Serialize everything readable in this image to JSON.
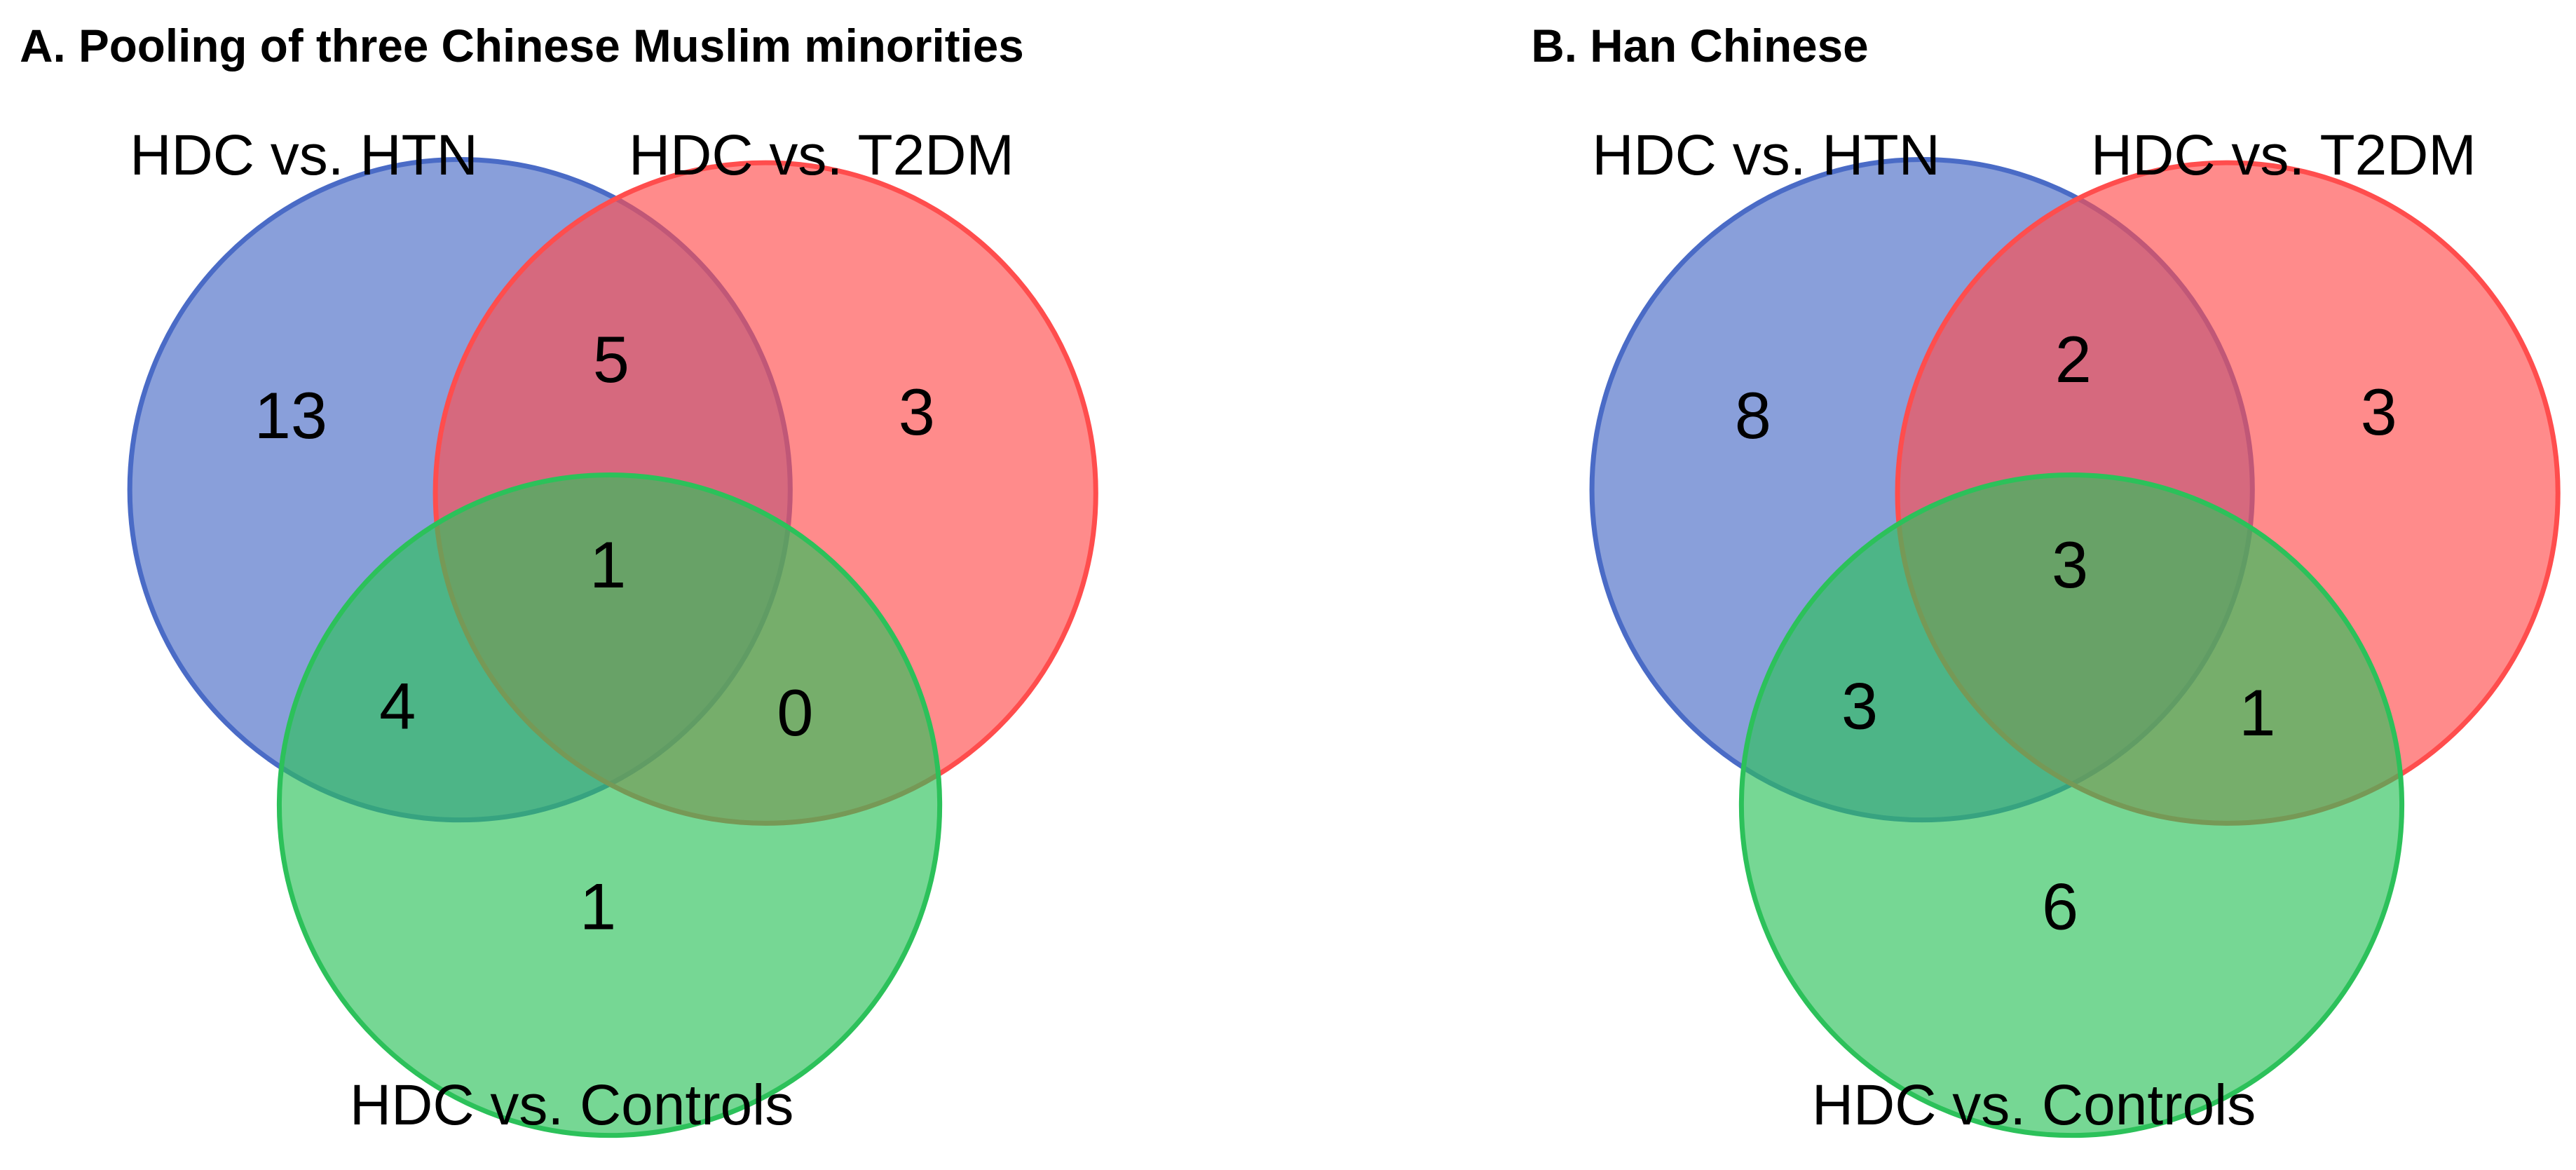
{
  "panels": [
    {
      "title": "A. Pooling of three Chinese Muslim minorities",
      "sets": [
        {
          "label": "HDC vs. HTN",
          "color": "#4a6bc6"
        },
        {
          "label": "HDC vs. T2DM",
          "color": "#ff4d4d"
        },
        {
          "label": "HDC vs. Controls",
          "color": "#2cc15a"
        }
      ],
      "counts": [
        13,
        5,
        3,
        1,
        4,
        0,
        1
      ]
    },
    {
      "title": "B. Han Chinese",
      "sets": [
        {
          "label": "HDC vs. HTN",
          "color": "#4a6bc6"
        },
        {
          "label": "HDC vs. T2DM",
          "color": "#ff4d4d"
        },
        {
          "label": "HDC vs. Controls",
          "color": "#2cc15a"
        }
      ],
      "counts": [
        8,
        2,
        3,
        3,
        3,
        1,
        6
      ]
    }
  ]
}
